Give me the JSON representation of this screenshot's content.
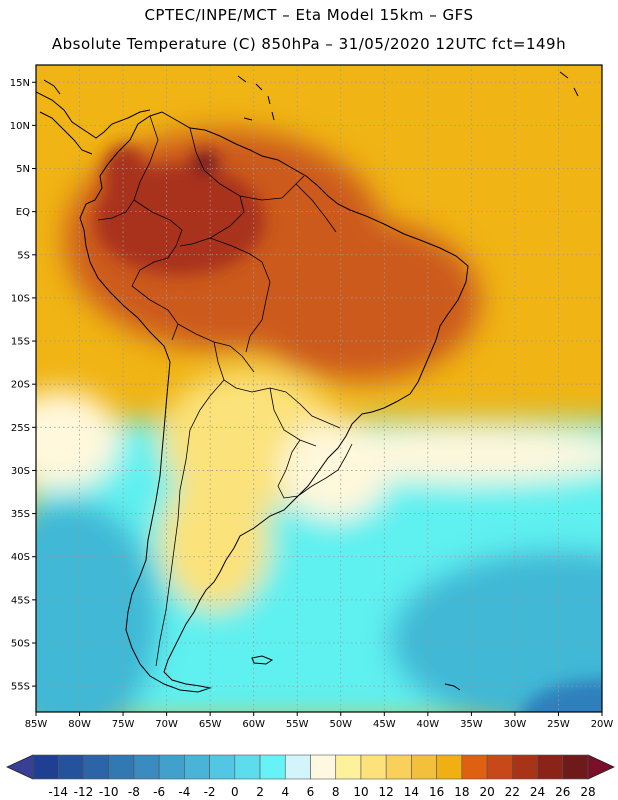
{
  "header": {
    "line1": "CPTEC/INPE/MCT –  Eta Model 15km – GFS",
    "line2": "Absolute Temperature (C) 850hPa – 31/05/2020 12UTC fct=149h"
  },
  "map": {
    "lon_range": [
      -85,
      -20
    ],
    "lat_range": [
      -58,
      17
    ],
    "lon_ticks": [
      {
        "v": -85,
        "label": "85W"
      },
      {
        "v": -80,
        "label": "80W"
      },
      {
        "v": -75,
        "label": "75W"
      },
      {
        "v": -70,
        "label": "70W"
      },
      {
        "v": -65,
        "label": "65W"
      },
      {
        "v": -60,
        "label": "60W"
      },
      {
        "v": -55,
        "label": "55W"
      },
      {
        "v": -50,
        "label": "50W"
      },
      {
        "v": -45,
        "label": "45W"
      },
      {
        "v": -40,
        "label": "40W"
      },
      {
        "v": -35,
        "label": "35W"
      },
      {
        "v": -30,
        "label": "30W"
      },
      {
        "v": -25,
        "label": "25W"
      },
      {
        "v": -20,
        "label": "20W"
      }
    ],
    "lat_ticks": [
      {
        "v": 15,
        "label": "15N"
      },
      {
        "v": 10,
        "label": "10N"
      },
      {
        "v": 5,
        "label": "5N"
      },
      {
        "v": 0,
        "label": "EQ"
      },
      {
        "v": -5,
        "label": "5S"
      },
      {
        "v": -10,
        "label": "10S"
      },
      {
        "v": -15,
        "label": "15S"
      },
      {
        "v": -20,
        "label": "20S"
      },
      {
        "v": -25,
        "label": "25S"
      },
      {
        "v": -30,
        "label": "30S"
      },
      {
        "v": -35,
        "label": "35S"
      },
      {
        "v": -40,
        "label": "40S"
      },
      {
        "v": -45,
        "label": "45S"
      },
      {
        "v": -50,
        "label": "50S"
      },
      {
        "v": -55,
        "label": "55S"
      }
    ],
    "colors": {
      "ocean_warm": "#f0b414",
      "land_hot": "#cc5a1c",
      "land_very_hot": "#a8321e",
      "max_spot": "#6e1420",
      "cold_ocean": "#3fb8d6",
      "cyan": "#5ff0f0",
      "pale": "#fff8dc",
      "yellow": "#fbe27a",
      "grid": "#9a9a9a",
      "coast": "#000000"
    }
  },
  "colorbar": {
    "labels": [
      "-14",
      "-12",
      "-10",
      "-8",
      "-6",
      "-4",
      "-2",
      "0",
      "2",
      "4",
      "6",
      "8",
      "10",
      "12",
      "14",
      "16",
      "18",
      "20",
      "22",
      "24",
      "26",
      "28"
    ],
    "colors": [
      "#1f3f93",
      "#25529d",
      "#2b65a8",
      "#3278b3",
      "#3a8bbf",
      "#42a0cc",
      "#4ab3d8",
      "#53c6e3",
      "#5ddced",
      "#66f2f6",
      "#d4f4fb",
      "#fff8e1",
      "#fdf19c",
      "#fde27b",
      "#f9d05a",
      "#f4c03c",
      "#f0b014",
      "#de6010",
      "#c8481a",
      "#a83418",
      "#8a2418",
      "#6e1a1a"
    ],
    "under_color": "#3a3f96",
    "over_color": "#7a0f2a"
  }
}
